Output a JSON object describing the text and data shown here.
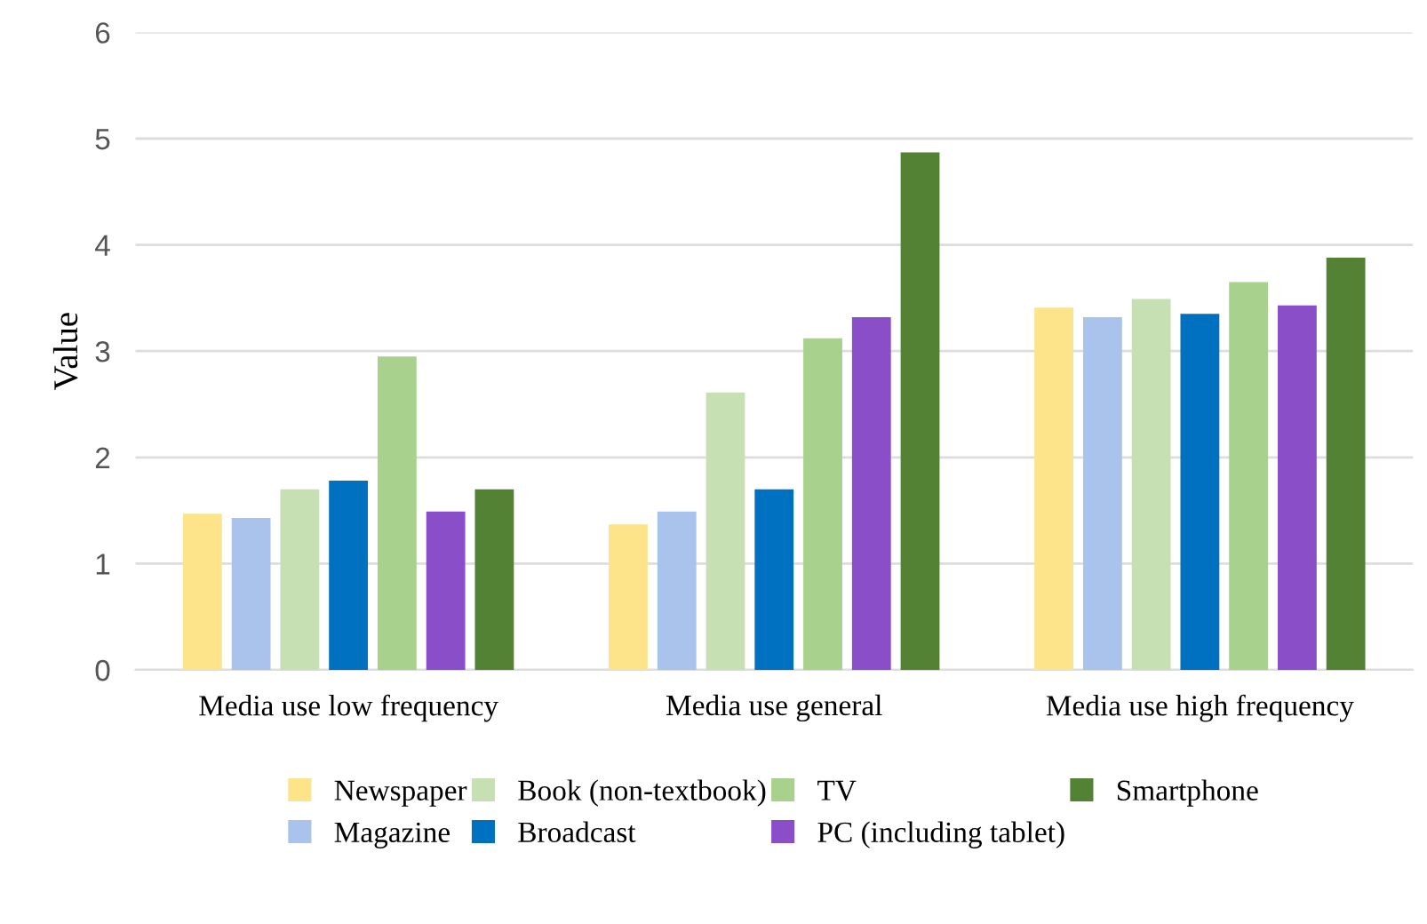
{
  "chart_data": {
    "type": "bar",
    "ylabel": "Value",
    "categories": [
      "Media use low frequency",
      "Media use general",
      "Media use high frequency"
    ],
    "series": [
      {
        "name": "Newspaper",
        "color": "#fde48a",
        "values": [
          1.47,
          1.37,
          3.41
        ]
      },
      {
        "name": "Magazine",
        "color": "#a9c3ec",
        "values": [
          1.43,
          1.49,
          3.32
        ]
      },
      {
        "name": "Book (non-textbook)",
        "color": "#c6e0b4",
        "values": [
          1.7,
          2.61,
          3.49
        ]
      },
      {
        "name": "Broadcast",
        "color": "#0070c0",
        "values": [
          1.78,
          1.7,
          3.35
        ]
      },
      {
        "name": "TV",
        "color": "#a9d18e",
        "values": [
          2.95,
          3.12,
          3.65
        ]
      },
      {
        "name": "PC (including tablet)",
        "color": "#8a4fc8",
        "values": [
          1.49,
          3.32,
          3.43
        ]
      },
      {
        "name": "Smartphone",
        "color": "#548235",
        "values": [
          1.7,
          4.87,
          3.88
        ]
      }
    ],
    "ylim": [
      0,
      6
    ],
    "yticks": [
      0,
      1,
      2,
      3,
      4,
      5,
      6
    ],
    "grid": "y",
    "legend": "bottom"
  }
}
